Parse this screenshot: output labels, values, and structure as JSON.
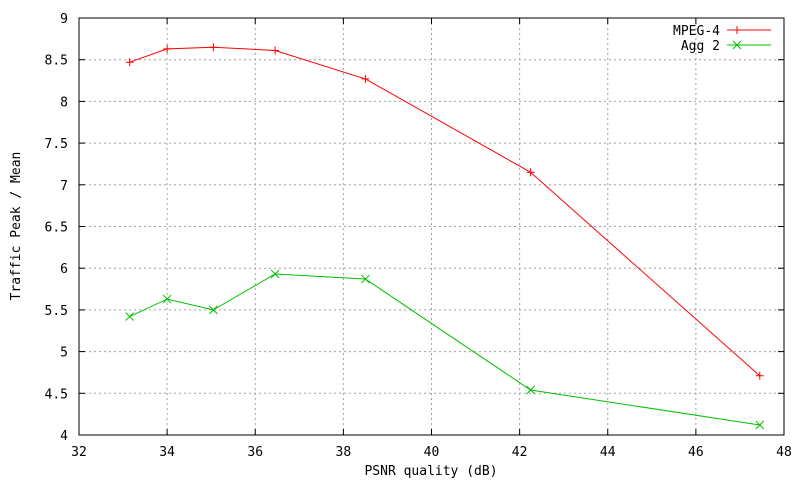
{
  "chart_data": {
    "type": "line",
    "xlabel": "PSNR quality (dB)",
    "ylabel": "Traffic Peak / Mean",
    "xlim": [
      32,
      48
    ],
    "ylim": [
      4,
      9
    ],
    "xticks": [
      "32",
      "34",
      "36",
      "38",
      "40",
      "42",
      "44",
      "46",
      "48"
    ],
    "yticks": [
      "4",
      "4.5",
      "5",
      "5.5",
      "6",
      "6.5",
      "7",
      "7.5",
      "8",
      "8.5",
      "9"
    ],
    "grid": true,
    "legend_position": "top-right",
    "series": [
      {
        "name": "MPEG-4",
        "color": "#ff0000",
        "marker": "plus",
        "points": [
          [
            33.15,
            8.47
          ],
          [
            34.0,
            8.63
          ],
          [
            35.05,
            8.65
          ],
          [
            36.45,
            8.61
          ],
          [
            38.5,
            8.27
          ],
          [
            42.25,
            7.15
          ],
          [
            47.45,
            4.71
          ]
        ]
      },
      {
        "name": "Agg 2",
        "color": "#00c000",
        "marker": "cross",
        "points": [
          [
            33.15,
            5.42
          ],
          [
            34.0,
            5.63
          ],
          [
            35.05,
            5.5
          ],
          [
            36.45,
            5.93
          ],
          [
            38.5,
            5.87
          ],
          [
            42.25,
            4.54
          ],
          [
            47.45,
            4.12
          ]
        ]
      }
    ]
  }
}
